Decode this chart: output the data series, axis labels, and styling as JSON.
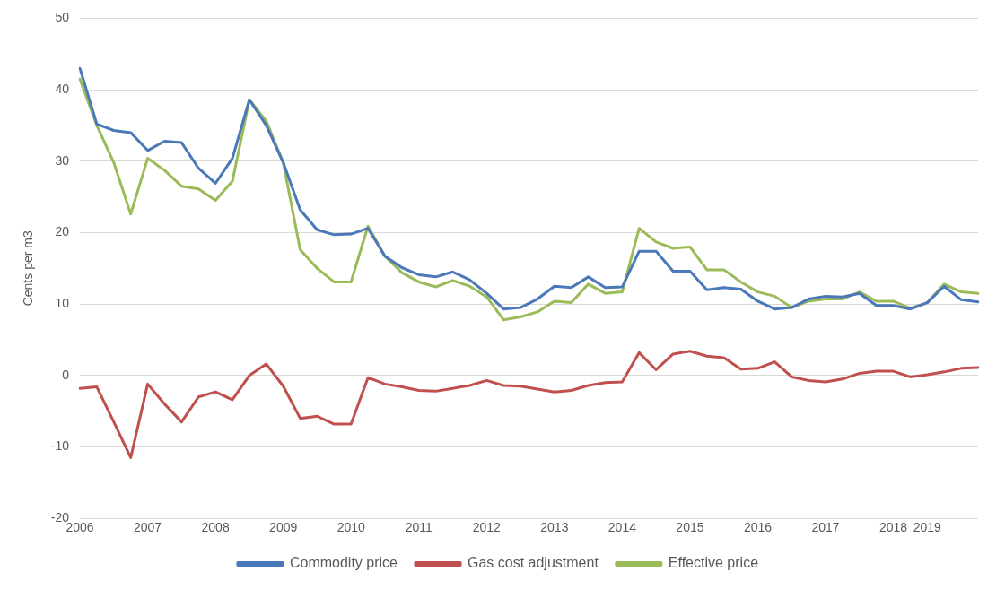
{
  "chart_data": {
    "type": "line",
    "ylabel": "Cents per m3",
    "categories": [
      "2006",
      null,
      null,
      null,
      "2007",
      null,
      null,
      null,
      "2008",
      null,
      null,
      null,
      "2009",
      null,
      null,
      null,
      "2010",
      null,
      null,
      null,
      "2011",
      null,
      null,
      null,
      "2012",
      null,
      null,
      null,
      "2013",
      null,
      null,
      null,
      "2014",
      null,
      null,
      null,
      "2015",
      null,
      null,
      null,
      "2016",
      null,
      null,
      null,
      "2017",
      null,
      null,
      null,
      "2018",
      null,
      "2019",
      null,
      null,
      null
    ],
    "series": [
      {
        "name": "Commodity price",
        "color": "#4a78b8",
        "values": [
          43,
          35.2,
          34.3,
          34,
          31.5,
          32.8,
          32.6,
          29,
          26.9,
          30.4,
          38.6,
          35,
          29.8,
          23.2,
          20.4,
          19.7,
          19.8,
          20.6,
          16.7,
          15.1,
          14.1,
          13.8,
          14.5,
          13.4,
          11.5,
          9.3,
          9.5,
          10.7,
          12.5,
          12.3,
          13.8,
          12.3,
          12.4,
          17.4,
          17.4,
          14.6,
          14.6,
          12,
          12.3,
          12.1,
          10.4,
          9.3,
          9.5,
          10.7,
          11.1,
          11,
          11.5,
          9.8,
          9.8,
          9.3,
          10.2,
          12.5,
          10.6,
          10.3
        ]
      },
      {
        "name": "Gas cost adjustment",
        "color": "#c0504d",
        "values": [
          -1.8,
          -1.6,
          -6.5,
          -11.5,
          -1.2,
          -4,
          -6.5,
          -3,
          -2.3,
          -3.4,
          0,
          1.6,
          -1.5,
          -6,
          -5.7,
          -6.8,
          -6.8,
          -0.3,
          -1.2,
          -1.6,
          -2.1,
          -2.2,
          -1.8,
          -1.4,
          -0.7,
          -1.4,
          -1.5,
          -1.9,
          -2.3,
          -2.1,
          -1.4,
          -1,
          -0.9,
          3.2,
          0.8,
          3,
          3.4,
          2.7,
          2.5,
          0.9,
          1,
          1.9,
          -0.2,
          -0.7,
          -0.9,
          -0.5,
          0.3,
          0.6,
          0.6,
          -0.2,
          0.1,
          0.5,
          1,
          1.1
        ]
      },
      {
        "name": "Effective price",
        "color": "#9bbb59",
        "values": [
          41.5,
          35,
          29.8,
          22.6,
          30.4,
          28.7,
          26.5,
          26.1,
          24.5,
          27.2,
          38.6,
          35.6,
          29.8,
          17.6,
          15,
          13.1,
          13.1,
          20.9,
          16.7,
          14.4,
          13.1,
          12.4,
          13.3,
          12.5,
          11,
          7.8,
          8.2,
          8.9,
          10.4,
          10.2,
          12.8,
          11.5,
          11.7,
          20.6,
          18.7,
          17.8,
          18,
          14.8,
          14.8,
          13.1,
          11.7,
          11.1,
          9.5,
          10.4,
          10.7,
          10.7,
          11.7,
          10.4,
          10.4,
          9.4,
          10.2,
          12.8,
          11.7,
          11.5
        ]
      }
    ],
    "ylim": [
      -20,
      50
    ],
    "yticks": [
      -20,
      -10,
      0,
      10,
      20,
      30,
      40,
      50
    ],
    "grid": "y",
    "legend": "bottom",
    "marker": "none",
    "line_style": "solid"
  }
}
